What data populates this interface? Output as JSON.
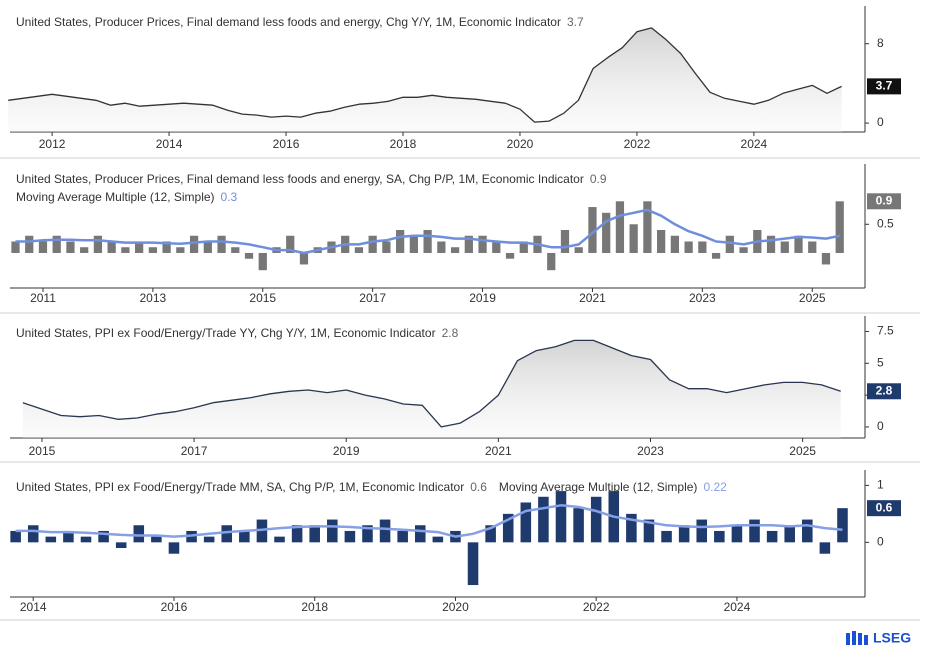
{
  "chart_data": [
    {
      "type": "line",
      "area": true,
      "value_box_color": "#111111",
      "series": [
        {
          "name": "United States, Producer Prices, Final demand less foods and energy, Chg Y/Y, 1M, Economic Indicator",
          "color": "#333333",
          "x": [
            2011.25,
            2011.5,
            2011.75,
            2012,
            2012.25,
            2012.5,
            2012.75,
            2013,
            2013.25,
            2013.5,
            2013.75,
            2014,
            2014.25,
            2014.5,
            2014.75,
            2015,
            2015.25,
            2015.5,
            2015.75,
            2016,
            2016.25,
            2016.5,
            2016.75,
            2017,
            2017.25,
            2017.5,
            2017.75,
            2018,
            2018.25,
            2018.5,
            2018.75,
            2019,
            2019.25,
            2019.5,
            2019.75,
            2020,
            2020.25,
            2020.5,
            2020.75,
            2021,
            2021.25,
            2021.5,
            2021.75,
            2022,
            2022.25,
            2022.5,
            2022.75,
            2023,
            2023.25,
            2023.5,
            2023.75,
            2024,
            2024.25,
            2024.5,
            2024.75,
            2025,
            2025.25,
            2025.5
          ],
          "values": [
            2.3,
            2.5,
            2.7,
            2.9,
            2.7,
            2.5,
            2.3,
            1.8,
            2.0,
            1.7,
            1.8,
            1.9,
            2.0,
            1.9,
            1.8,
            1.3,
            0.9,
            0.8,
            0.6,
            0.7,
            0.6,
            1.0,
            1.2,
            1.6,
            1.9,
            2.0,
            2.2,
            2.6,
            2.6,
            2.8,
            2.6,
            2.5,
            2.4,
            2.2,
            2.0,
            1.4,
            0.1,
            0.2,
            1.0,
            2.3,
            5.5,
            6.6,
            7.6,
            9.2,
            9.6,
            8.4,
            7.0,
            5.0,
            3.1,
            2.5,
            2.2,
            1.9,
            2.3,
            3.0,
            3.4,
            3.8,
            3.0,
            3.7
          ]
        }
      ],
      "xlim": [
        2011.28,
        2025.9
      ],
      "xticks": [
        2012,
        2014,
        2016,
        2018,
        2020,
        2022,
        2024
      ],
      "ylim": [
        -0.9,
        11.4
      ],
      "yticks": [
        0,
        8
      ],
      "grid": false
    },
    {
      "type": "bar",
      "value_box_color": "#777777",
      "series": [
        {
          "name": "United States, Producer Prices, Final demand less foods and energy, SA, Chg P/P, 1M, Economic Indicator",
          "color": "#777777",
          "x": [
            2010.5,
            2010.75,
            2011,
            2011.25,
            2011.5,
            2011.75,
            2012,
            2012.25,
            2012.5,
            2012.75,
            2013,
            2013.25,
            2013.5,
            2013.75,
            2014,
            2014.25,
            2014.5,
            2014.75,
            2015,
            2015.25,
            2015.5,
            2015.75,
            2016,
            2016.25,
            2016.5,
            2016.75,
            2017,
            2017.25,
            2017.5,
            2017.75,
            2018,
            2018.25,
            2018.5,
            2018.75,
            2019,
            2019.25,
            2019.5,
            2019.75,
            2020,
            2020.25,
            2020.5,
            2020.75,
            2021,
            2021.25,
            2021.5,
            2021.75,
            2022,
            2022.25,
            2022.5,
            2022.75,
            2023,
            2023.25,
            2023.5,
            2023.75,
            2024,
            2024.25,
            2024.5,
            2024.75,
            2025,
            2025.25,
            2025.5
          ],
          "values": [
            0.2,
            0.3,
            0.2,
            0.3,
            0.2,
            0.1,
            0.3,
            0.2,
            0.1,
            0.2,
            0.1,
            0.2,
            0.1,
            0.3,
            0.2,
            0.3,
            0.1,
            -0.1,
            -0.3,
            0.1,
            0.3,
            -0.2,
            0.1,
            0.2,
            0.3,
            0.1,
            0.3,
            0.2,
            0.4,
            0.3,
            0.4,
            0.2,
            0.1,
            0.3,
            0.3,
            0.2,
            -0.1,
            0.2,
            0.3,
            -0.3,
            0.4,
            0.1,
            0.8,
            0.7,
            0.9,
            0.5,
            0.9,
            0.4,
            0.3,
            0.2,
            0.2,
            -0.1,
            0.3,
            0.1,
            0.4,
            0.3,
            0.2,
            0.3,
            0.2,
            -0.2,
            0.9
          ]
        },
        {
          "name": "Moving Average Multiple (12, Simple)",
          "color": "#6f8fdc",
          "line": true,
          "x": [
            2010.5,
            2010.75,
            2011,
            2011.25,
            2011.5,
            2011.75,
            2012,
            2012.25,
            2012.5,
            2012.75,
            2013,
            2013.25,
            2013.5,
            2013.75,
            2014,
            2014.25,
            2014.5,
            2014.75,
            2015,
            2015.25,
            2015.5,
            2015.75,
            2016,
            2016.25,
            2016.5,
            2016.75,
            2017,
            2017.25,
            2017.5,
            2017.75,
            2018,
            2018.25,
            2018.5,
            2018.75,
            2019,
            2019.25,
            2019.5,
            2019.75,
            2020,
            2020.25,
            2020.5,
            2020.75,
            2021,
            2021.25,
            2021.5,
            2021.75,
            2022,
            2022.25,
            2022.5,
            2022.75,
            2023,
            2023.25,
            2023.5,
            2023.75,
            2024,
            2024.25,
            2024.5,
            2024.75,
            2025,
            2025.25,
            2025.5
          ],
          "values": [
            0.2,
            0.2,
            0.22,
            0.23,
            0.23,
            0.22,
            0.22,
            0.2,
            0.18,
            0.18,
            0.18,
            0.17,
            0.16,
            0.18,
            0.2,
            0.2,
            0.18,
            0.15,
            0.1,
            0.05,
            0.05,
            0.0,
            0.05,
            0.1,
            0.15,
            0.15,
            0.2,
            0.22,
            0.28,
            0.3,
            0.3,
            0.28,
            0.25,
            0.25,
            0.22,
            0.2,
            0.18,
            0.18,
            0.15,
            0.1,
            0.1,
            0.15,
            0.35,
            0.55,
            0.65,
            0.7,
            0.75,
            0.65,
            0.5,
            0.38,
            0.3,
            0.2,
            0.18,
            0.15,
            0.2,
            0.22,
            0.25,
            0.28,
            0.27,
            0.25,
            0.3
          ]
        }
      ],
      "xlim": [
        2010.4,
        2025.96
      ],
      "xticks": [
        2011,
        2013,
        2015,
        2017,
        2019,
        2021,
        2023,
        2025
      ],
      "ylim": [
        -0.61,
        1.48
      ],
      "yticks": [
        0.5
      ],
      "grid": false
    },
    {
      "type": "line",
      "area": true,
      "value_box_color": "#1f3b6e",
      "series": [
        {
          "name": "United States, PPI ex Food/Energy/Trade YY, Chg Y/Y, 1M, Economic Indicator",
          "color": "#2a3550",
          "x": [
            2014.75,
            2015,
            2015.25,
            2015.5,
            2015.75,
            2016,
            2016.25,
            2016.5,
            2016.75,
            2017,
            2017.25,
            2017.5,
            2017.75,
            2018,
            2018.25,
            2018.5,
            2018.75,
            2019,
            2019.25,
            2019.5,
            2019.75,
            2020,
            2020.25,
            2020.5,
            2020.75,
            2021,
            2021.25,
            2021.5,
            2021.75,
            2022,
            2022.25,
            2022.5,
            2022.75,
            2023,
            2023.25,
            2023.5,
            2023.75,
            2024,
            2024.25,
            2024.5,
            2024.75,
            2025,
            2025.25,
            2025.5
          ],
          "values": [
            1.9,
            1.4,
            0.9,
            0.8,
            0.9,
            0.6,
            0.7,
            1.0,
            1.2,
            1.5,
            1.9,
            2.1,
            2.3,
            2.6,
            2.8,
            2.9,
            2.7,
            2.9,
            2.5,
            2.2,
            1.8,
            1.7,
            0.0,
            0.3,
            1.2,
            2.5,
            5.2,
            6.0,
            6.3,
            6.8,
            6.8,
            6.2,
            5.6,
            5.3,
            3.7,
            3.0,
            3.0,
            2.7,
            3.0,
            3.3,
            3.5,
            3.5,
            3.3,
            2.8
          ]
        }
      ],
      "xlim": [
        2014.58,
        2025.82
      ],
      "xticks": [
        2015,
        2017,
        2019,
        2021,
        2023,
        2025
      ],
      "ylim": [
        -0.87,
        8.4
      ],
      "yticks": [
        0,
        2.5,
        5,
        7.5
      ],
      "grid": false
    },
    {
      "type": "bar",
      "value_box_color": "#1f3b6e",
      "series": [
        {
          "name": "United States, PPI ex Food/Energy/Trade MM, SA, Chg P/P, 1M, Economic Indicator",
          "color": "#1f3b6e",
          "x": [
            2013.75,
            2014,
            2014.25,
            2014.5,
            2014.75,
            2015,
            2015.25,
            2015.5,
            2015.75,
            2016,
            2016.25,
            2016.5,
            2016.75,
            2017,
            2017.25,
            2017.5,
            2017.75,
            2018,
            2018.25,
            2018.5,
            2018.75,
            2019,
            2019.25,
            2019.5,
            2019.75,
            2020,
            2020.25,
            2020.5,
            2020.75,
            2021,
            2021.25,
            2021.5,
            2021.75,
            2022,
            2022.25,
            2022.5,
            2022.75,
            2023,
            2023.25,
            2023.5,
            2023.75,
            2024,
            2024.25,
            2024.5,
            2024.75,
            2025,
            2025.25,
            2025.5
          ],
          "values": [
            0.2,
            0.3,
            0.1,
            0.2,
            0.1,
            0.2,
            -0.1,
            0.3,
            0.1,
            -0.2,
            0.2,
            0.1,
            0.3,
            0.2,
            0.4,
            0.1,
            0.3,
            0.3,
            0.4,
            0.2,
            0.3,
            0.4,
            0.2,
            0.3,
            0.1,
            0.2,
            -0.75,
            0.3,
            0.5,
            0.7,
            0.8,
            0.9,
            0.6,
            0.8,
            0.9,
            0.5,
            0.4,
            0.2,
            0.3,
            0.4,
            0.2,
            0.3,
            0.4,
            0.2,
            0.3,
            0.4,
            -0.2,
            0.6
          ]
        },
        {
          "name": "Moving Average Multiple (12, Simple)",
          "color": "#86a0e6",
          "line": true,
          "x": [
            2013.75,
            2014,
            2014.25,
            2014.5,
            2014.75,
            2015,
            2015.25,
            2015.5,
            2015.75,
            2016,
            2016.25,
            2016.5,
            2016.75,
            2017,
            2017.25,
            2017.5,
            2017.75,
            2018,
            2018.25,
            2018.5,
            2018.75,
            2019,
            2019.25,
            2019.5,
            2019.75,
            2020,
            2020.25,
            2020.5,
            2020.75,
            2021,
            2021.25,
            2021.5,
            2021.75,
            2022,
            2022.25,
            2022.5,
            2022.75,
            2023,
            2023.25,
            2023.5,
            2023.75,
            2024,
            2024.25,
            2024.5,
            2024.75,
            2025,
            2025.25,
            2025.5
          ],
          "values": [
            0.2,
            0.2,
            0.18,
            0.18,
            0.17,
            0.15,
            0.13,
            0.12,
            0.12,
            0.1,
            0.12,
            0.15,
            0.18,
            0.2,
            0.22,
            0.25,
            0.27,
            0.28,
            0.28,
            0.27,
            0.25,
            0.24,
            0.22,
            0.2,
            0.18,
            0.1,
            0.15,
            0.25,
            0.4,
            0.55,
            0.6,
            0.65,
            0.62,
            0.55,
            0.45,
            0.4,
            0.35,
            0.3,
            0.28,
            0.27,
            0.28,
            0.3,
            0.3,
            0.3,
            0.28,
            0.3,
            0.25,
            0.22
          ]
        }
      ],
      "xlim": [
        2013.67,
        2025.82
      ],
      "xticks": [
        2014,
        2016,
        2018,
        2020,
        2022,
        2024
      ],
      "ylim": [
        -0.96,
        1.2
      ],
      "yticks": [
        0,
        1
      ],
      "grid": false
    }
  ],
  "footer": {
    "brand": "LSEG"
  }
}
